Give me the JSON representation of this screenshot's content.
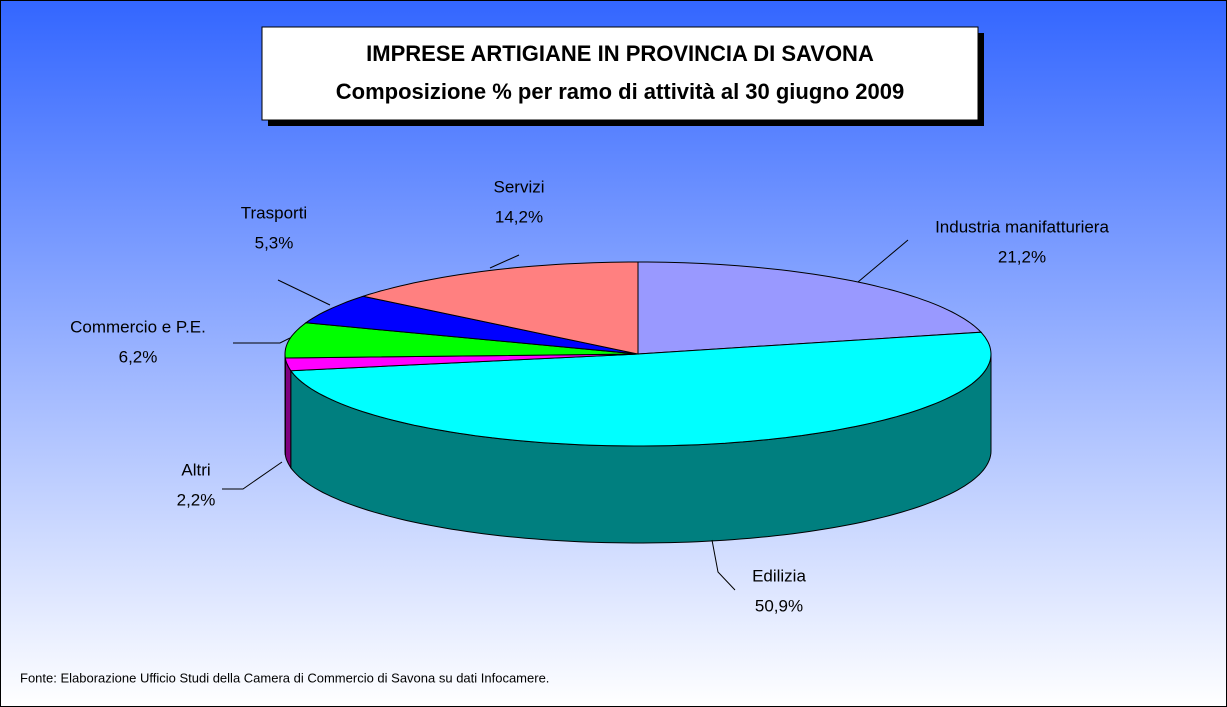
{
  "chart_data": {
    "type": "pie",
    "title": "IMPRESE ARTIGIANE IN PROVINCIA DI SAVONA",
    "subtitle": "Composizione % per ramo di attività al 30 giugno 2009",
    "categories": [
      "Industria manifatturiera",
      "Edilizia",
      "Altri",
      "Commercio e P.E.",
      "Trasporti",
      "Servizi"
    ],
    "values": [
      21.2,
      50.9,
      2.2,
      6.2,
      5.3,
      14.2
    ],
    "value_labels": [
      "21,2%",
      "50,9%",
      "2,2%",
      "6,2%",
      "5,3%",
      "14,2%"
    ],
    "colors": [
      "#9999ff",
      "#00ffff",
      "#ff00ff",
      "#00ff00",
      "#0000ff",
      "#ff8080"
    ],
    "source": "Fonte: Elaborazione Ufficio Studi della Camera di Commercio di Savona su dati Infocamere."
  }
}
